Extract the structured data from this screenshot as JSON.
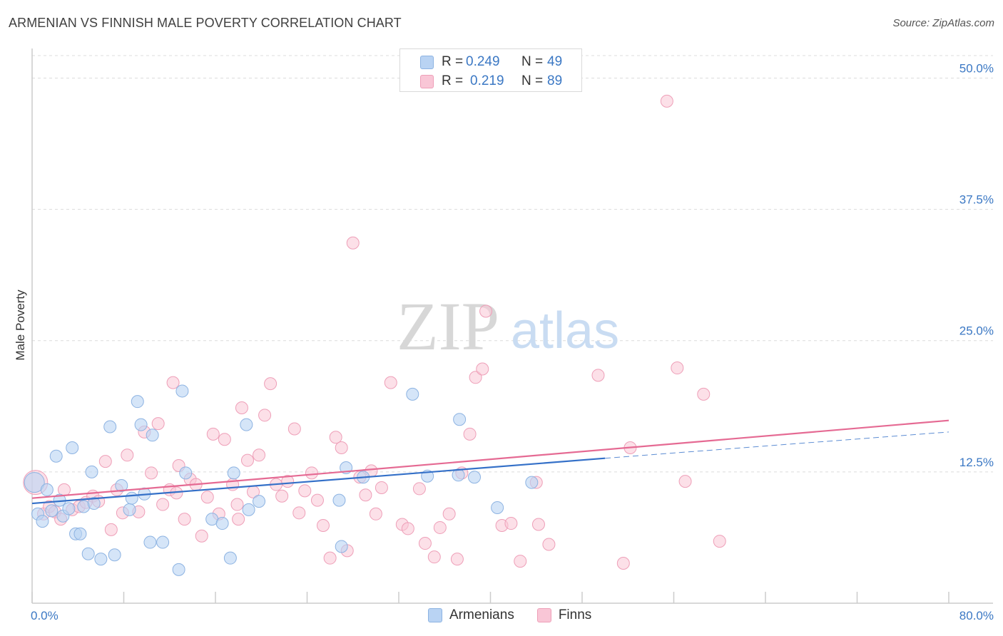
{
  "title": "ARMENIAN VS FINNISH MALE POVERTY CORRELATION CHART",
  "source": "Source: ZipAtlas.com",
  "watermark": {
    "zip": "ZIP",
    "atlas": "atlas"
  },
  "legend_top": {
    "rows": [
      {
        "r_label": "R =",
        "r_value": "0.249",
        "n_label": "N =",
        "n_value": "49"
      },
      {
        "r_label": "R =",
        "r_value": "0.219",
        "n_label": "N =",
        "n_value": "89"
      }
    ]
  },
  "legend_bottom": {
    "items": [
      "Armenians",
      "Finns"
    ]
  },
  "colors": {
    "armenian_fill": "#b9d3f3",
    "armenian_stroke": "#8db3e2",
    "armenian_line": "#3470c8",
    "finn_fill": "#f9c6d6",
    "finn_stroke": "#ee9fb8",
    "finn_line": "#e56a93",
    "value_text": "#3b78c4",
    "grid": "#dcdcdc"
  },
  "chart_data": {
    "type": "scatter",
    "title": "ARMENIAN VS FINNISH MALE POVERTY CORRELATION CHART",
    "xlabel": "",
    "ylabel": "Male Poverty",
    "xlim": [
      0,
      80
    ],
    "ylim": [
      0,
      52
    ],
    "x_tick_labels": [
      "0.0%",
      "80.0%"
    ],
    "y_ticks": [
      12.5,
      25.0,
      37.5,
      50.0
    ],
    "y_tick_labels": [
      "12.5%",
      "25.0%",
      "37.5%",
      "50.0%"
    ],
    "series": [
      {
        "name": "Armenians",
        "r": 0.249,
        "n": 49,
        "trend": {
          "x0": 0,
          "y0": 9.5,
          "x1": 50,
          "y1": 13.8,
          "dashed_to_x": 80,
          "dashed_to_y": 16.3
        },
        "points": [
          [
            0.2,
            11.5
          ],
          [
            0.5,
            8.5
          ],
          [
            0.9,
            7.8
          ],
          [
            1.3,
            10.8
          ],
          [
            1.7,
            8.8
          ],
          [
            2.1,
            14.0
          ],
          [
            2.4,
            9.8
          ],
          [
            2.7,
            8.3
          ],
          [
            3.2,
            9.0
          ],
          [
            3.5,
            14.8
          ],
          [
            3.8,
            6.6
          ],
          [
            4.2,
            6.6
          ],
          [
            4.5,
            9.2
          ],
          [
            4.9,
            4.7
          ],
          [
            5.2,
            12.5
          ],
          [
            5.4,
            9.5
          ],
          [
            6.0,
            4.2
          ],
          [
            6.8,
            16.8
          ],
          [
            7.2,
            4.6
          ],
          [
            7.8,
            11.2
          ],
          [
            8.5,
            8.9
          ],
          [
            8.7,
            10.0
          ],
          [
            9.2,
            19.2
          ],
          [
            9.5,
            17.0
          ],
          [
            9.8,
            10.4
          ],
          [
            10.3,
            5.8
          ],
          [
            10.5,
            16.0
          ],
          [
            11.4,
            5.8
          ],
          [
            12.8,
            3.2
          ],
          [
            13.1,
            20.2
          ],
          [
            13.4,
            12.4
          ],
          [
            15.7,
            8.0
          ],
          [
            16.6,
            7.6
          ],
          [
            17.3,
            4.3
          ],
          [
            17.6,
            12.4
          ],
          [
            18.7,
            17.0
          ],
          [
            18.9,
            8.9
          ],
          [
            19.8,
            9.7
          ],
          [
            26.8,
            9.8
          ],
          [
            27.0,
            5.4
          ],
          [
            27.4,
            12.9
          ],
          [
            28.9,
            12.0
          ],
          [
            33.2,
            19.9
          ],
          [
            34.5,
            12.1
          ],
          [
            37.2,
            12.2
          ],
          [
            37.3,
            17.5
          ],
          [
            38.6,
            12.0
          ],
          [
            40.6,
            9.1
          ],
          [
            43.6,
            11.5
          ]
        ]
      },
      {
        "name": "Finns",
        "r": 0.219,
        "n": 89,
        "trend": {
          "x0": 0,
          "y0": 10.0,
          "x1": 80,
          "y1": 17.4
        },
        "points": [
          [
            0.3,
            11.5
          ],
          [
            1.0,
            8.5
          ],
          [
            1.5,
            9.2
          ],
          [
            2.0,
            8.7
          ],
          [
            2.5,
            8.0
          ],
          [
            2.8,
            10.8
          ],
          [
            3.5,
            8.9
          ],
          [
            4.1,
            9.2
          ],
          [
            4.7,
            9.6
          ],
          [
            5.3,
            10.2
          ],
          [
            5.8,
            9.7
          ],
          [
            6.4,
            13.5
          ],
          [
            6.9,
            7.0
          ],
          [
            7.4,
            10.8
          ],
          [
            7.9,
            8.6
          ],
          [
            8.3,
            14.1
          ],
          [
            9.3,
            8.7
          ],
          [
            9.8,
            16.3
          ],
          [
            10.4,
            12.4
          ],
          [
            11.0,
            17.1
          ],
          [
            11.4,
            9.4
          ],
          [
            12.0,
            10.8
          ],
          [
            12.3,
            21.0
          ],
          [
            12.8,
            13.1
          ],
          [
            13.3,
            8.0
          ],
          [
            13.8,
            11.8
          ],
          [
            14.3,
            11.3
          ],
          [
            14.8,
            6.4
          ],
          [
            15.3,
            10.1
          ],
          [
            15.8,
            16.1
          ],
          [
            16.3,
            8.5
          ],
          [
            16.8,
            15.6
          ],
          [
            17.5,
            11.3
          ],
          [
            17.9,
            9.4
          ],
          [
            18.3,
            18.6
          ],
          [
            18.8,
            13.6
          ],
          [
            19.3,
            10.6
          ],
          [
            19.8,
            14.1
          ],
          [
            20.3,
            17.9
          ],
          [
            20.8,
            20.9
          ],
          [
            21.3,
            11.3
          ],
          [
            21.8,
            10.2
          ],
          [
            22.3,
            11.6
          ],
          [
            22.9,
            16.6
          ],
          [
            23.3,
            8.6
          ],
          [
            23.8,
            10.7
          ],
          [
            24.4,
            12.4
          ],
          [
            24.9,
            9.8
          ],
          [
            25.4,
            7.4
          ],
          [
            26.0,
            4.3
          ],
          [
            26.5,
            15.8
          ],
          [
            27.0,
            14.8
          ],
          [
            27.5,
            5.0
          ],
          [
            28.0,
            34.3
          ],
          [
            28.6,
            12.0
          ],
          [
            29.1,
            10.3
          ],
          [
            29.6,
            12.6
          ],
          [
            30.5,
            11.0
          ],
          [
            31.3,
            21.0
          ],
          [
            32.3,
            7.5
          ],
          [
            32.8,
            7.1
          ],
          [
            33.8,
            10.9
          ],
          [
            34.3,
            5.7
          ],
          [
            35.1,
            4.4
          ],
          [
            35.6,
            7.2
          ],
          [
            36.4,
            8.5
          ],
          [
            37.1,
            4.2
          ],
          [
            37.5,
            12.4
          ],
          [
            38.2,
            16.1
          ],
          [
            38.7,
            21.5
          ],
          [
            39.3,
            22.3
          ],
          [
            39.6,
            27.8
          ],
          [
            41.0,
            7.4
          ],
          [
            41.8,
            7.6
          ],
          [
            42.6,
            4.0
          ],
          [
            44.2,
            7.5
          ],
          [
            45.1,
            5.6
          ],
          [
            49.4,
            21.7
          ],
          [
            51.6,
            3.8
          ],
          [
            52.2,
            14.8
          ],
          [
            55.4,
            47.8
          ],
          [
            56.3,
            22.4
          ],
          [
            57.0,
            11.6
          ],
          [
            58.6,
            19.9
          ],
          [
            60.0,
            5.9
          ],
          [
            12.6,
            10.5
          ],
          [
            18.0,
            8.0
          ],
          [
            30.0,
            8.5
          ],
          [
            44.0,
            11.5
          ]
        ]
      }
    ]
  }
}
